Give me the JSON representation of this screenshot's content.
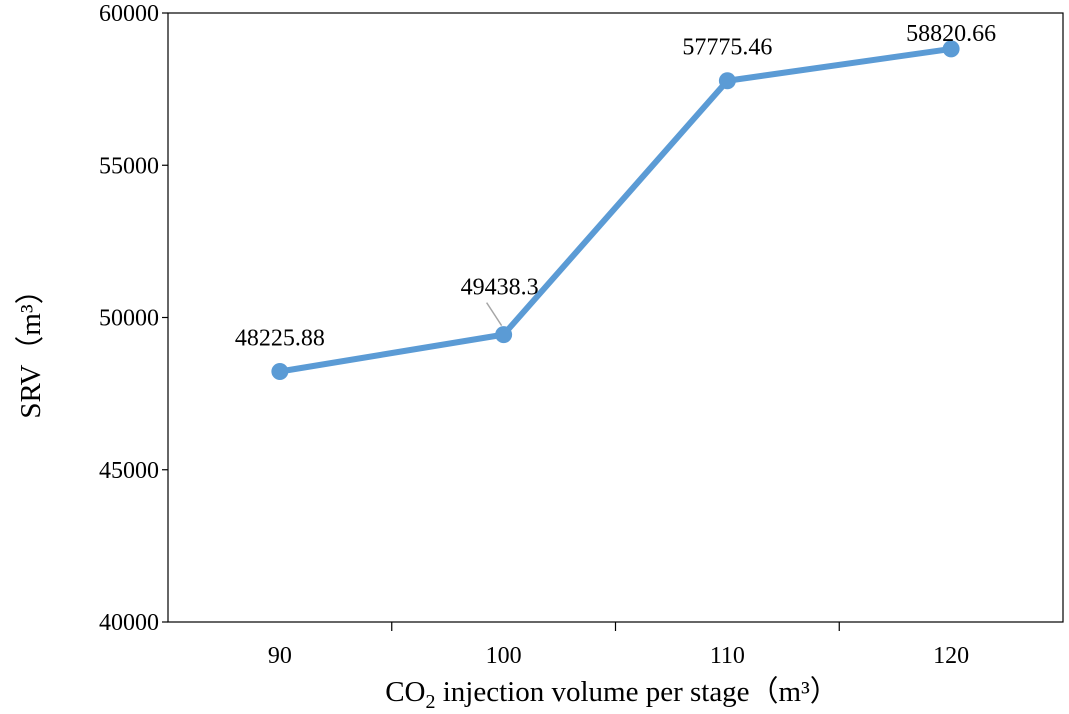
{
  "chart_data": {
    "type": "line",
    "x": [
      90,
      100,
      110,
      120
    ],
    "categories": [
      "90",
      "100",
      "110",
      "120"
    ],
    "series": [
      {
        "values": [
          48225.88,
          49438.3,
          57775.46,
          58820.66
        ],
        "data_labels": [
          "48225.88",
          "49438.3",
          "57775.46",
          "58820.66"
        ],
        "color": "#5b9bd5"
      }
    ],
    "title": "",
    "xlabel": {
      "prefix": "CO",
      "subscript": "2",
      "suffix": " injection volume per stage（m³）"
    },
    "ylabel": "SRV（m³）",
    "ylim": [
      40000,
      60000
    ],
    "yticks": [
      40000,
      45000,
      50000,
      55000,
      60000
    ],
    "ytick_labels": [
      "40000",
      "45000",
      "50000",
      "55000",
      "60000"
    ],
    "grid": false,
    "legend": "none",
    "axis_color": "#000000",
    "leader_line_color": "#a6a6a6"
  }
}
